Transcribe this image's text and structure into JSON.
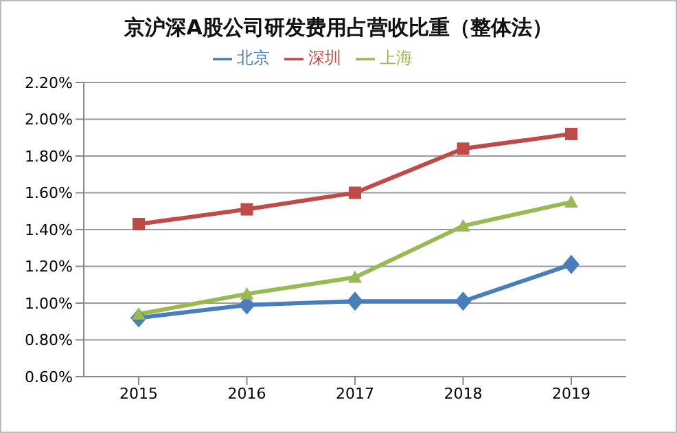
{
  "chart_data": {
    "type": "line",
    "title": "京沪深A股公司研发费用占营收比重（整体法）",
    "categories": [
      "2015",
      "2016",
      "2017",
      "2018",
      "2019"
    ],
    "series": [
      {
        "name": "北京",
        "color": "#4a7ebb",
        "marker": "diamond",
        "values": [
          0.92,
          0.99,
          1.01,
          1.01,
          1.21
        ]
      },
      {
        "name": "深圳",
        "color": "#be4b48",
        "marker": "square",
        "values": [
          1.43,
          1.51,
          1.6,
          1.84,
          1.92
        ]
      },
      {
        "name": "上海",
        "color": "#98b954",
        "marker": "triangle",
        "values": [
          0.94,
          1.05,
          1.14,
          1.42,
          1.55
        ]
      }
    ],
    "ylim": [
      0.6,
      2.2
    ],
    "yticks": [
      {
        "value": 0.6,
        "label": "0.60%"
      },
      {
        "value": 0.8,
        "label": "0.80%"
      },
      {
        "value": 1.0,
        "label": "1.00%"
      },
      {
        "value": 1.2,
        "label": "1.20%"
      },
      {
        "value": 1.4,
        "label": "1.40%"
      },
      {
        "value": 1.6,
        "label": "1.60%"
      },
      {
        "value": 1.8,
        "label": "1.80%"
      },
      {
        "value": 2.0,
        "label": "2.00%"
      },
      {
        "value": 2.2,
        "label": "2.20%"
      }
    ],
    "grid": "y",
    "legend": "top",
    "line_style": "solid"
  }
}
